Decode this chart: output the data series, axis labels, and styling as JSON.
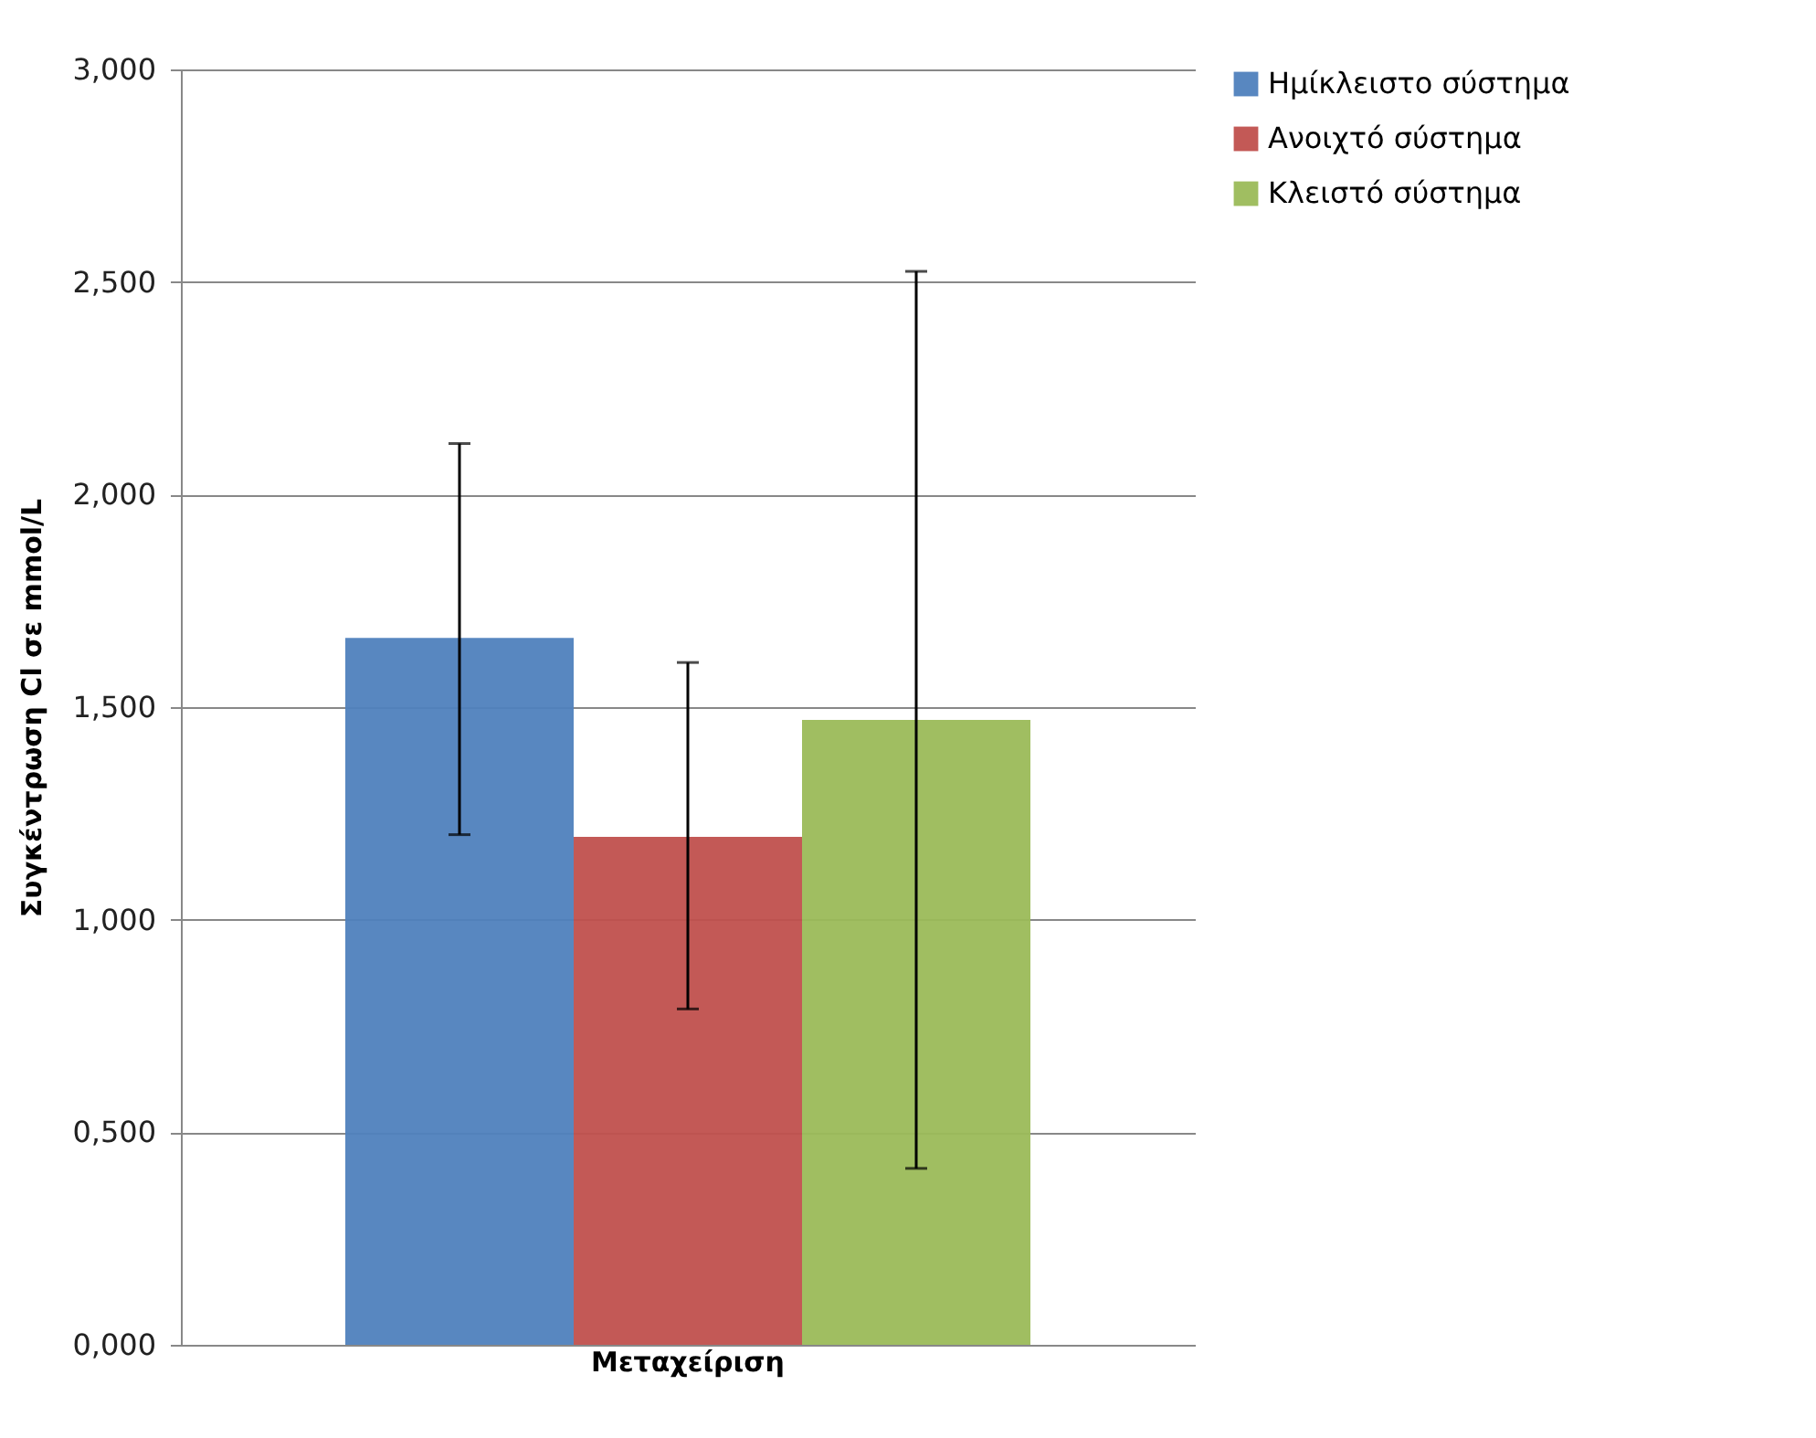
{
  "chart_data": {
    "type": "bar",
    "ylabel": "Συγκέντρωση Cl σε mmol/L",
    "categories": [
      "Μεταχείριση"
    ],
    "series": [
      {
        "name": "Ημίκλειστο σύστημα",
        "color": "#4f81bd",
        "values": [
          1.663
        ],
        "errors": [
          [
            1.2,
            2.12
          ]
        ]
      },
      {
        "name": "Ανοιχτό σύστημα",
        "color": "#c0504d",
        "values": [
          1.195
        ],
        "errors": [
          [
            0.79,
            1.605
          ]
        ]
      },
      {
        "name": "Κλειστό σύστημα",
        "color": "#9bbb59",
        "values": [
          1.47
        ],
        "errors": [
          [
            0.415,
            2.525
          ]
        ]
      }
    ],
    "ylim": [
      0,
      3
    ],
    "yticks": [
      {
        "value": 0,
        "label": "0,000"
      },
      {
        "value": 0.5,
        "label": "0,500"
      },
      {
        "value": 1,
        "label": "1,000"
      },
      {
        "value": 1.5,
        "label": "1,500"
      },
      {
        "value": 2,
        "label": "2,000"
      },
      {
        "value": 2.5,
        "label": "2,500"
      },
      {
        "value": 3,
        "label": "3,000"
      }
    ],
    "grid": "y",
    "legend": "right"
  }
}
